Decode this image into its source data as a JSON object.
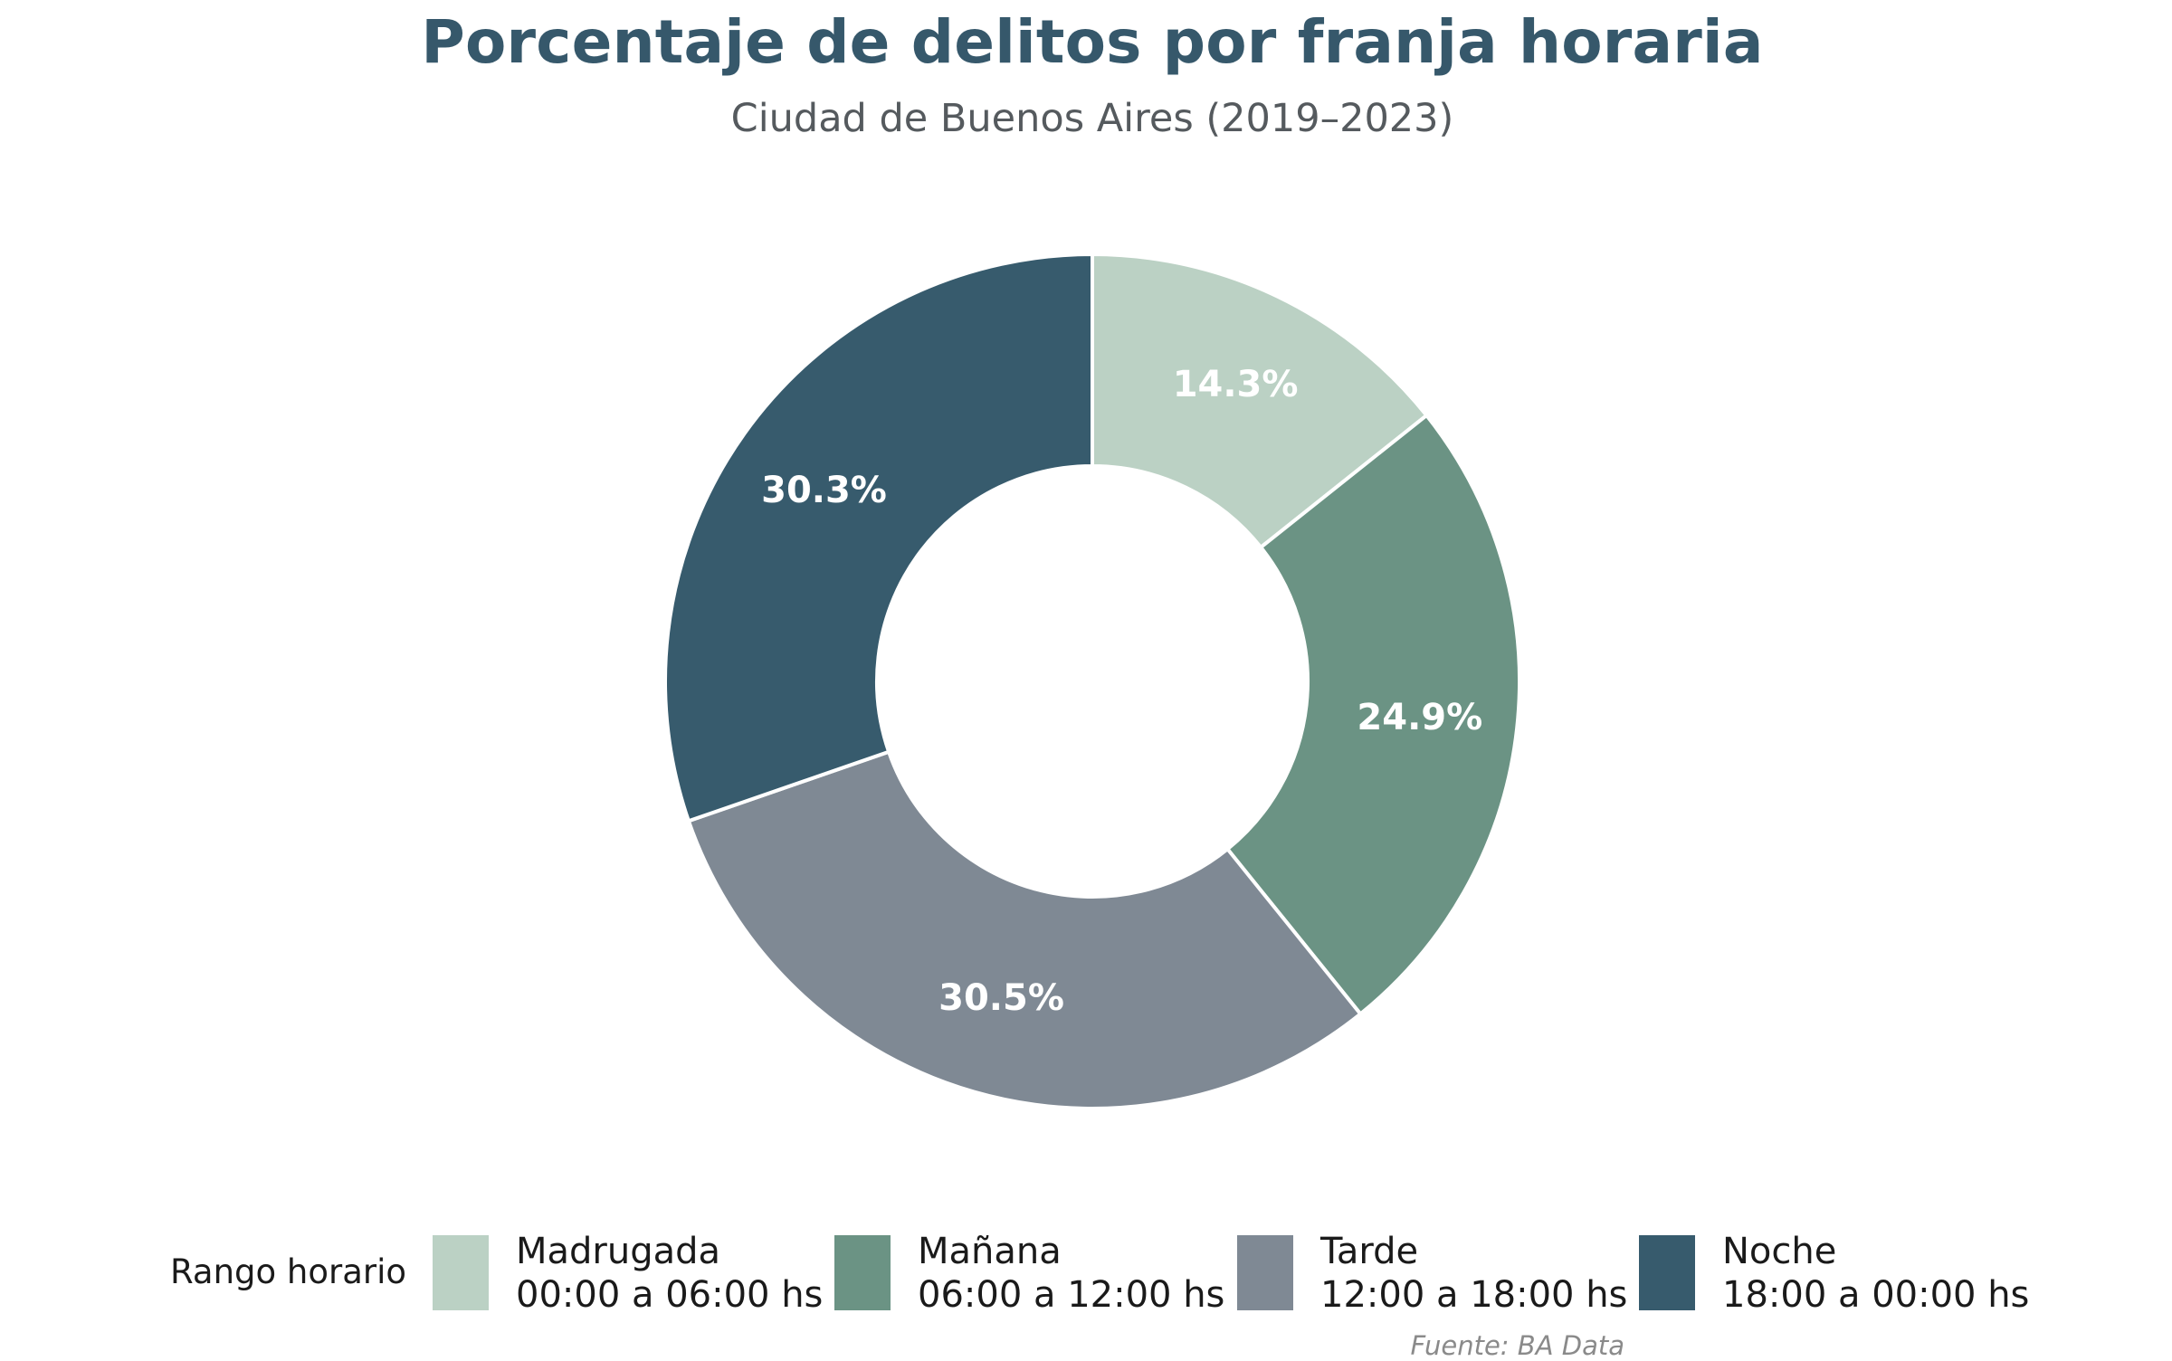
{
  "chart_data": {
    "type": "pie",
    "title": "Porcentaje de delitos por franja horaria",
    "subtitle": "Ciudad de Buenos Aires (2019–2023)",
    "legend_title": "Rango horario",
    "legend_placement": "bottom",
    "source": "Fuente: BA Data",
    "categories": [
      "Madrugada",
      "Mañana",
      "Tarde",
      "Noche"
    ],
    "ranges": [
      "00:00 a 06:00 hs",
      "06:00 a 12:00 hs",
      "12:00 a 18:00 hs",
      "18:00 a 00:00 hs"
    ],
    "values": [
      14.3,
      24.9,
      30.5,
      30.3
    ],
    "labels": [
      "14.3%",
      "24.9%",
      "30.5%",
      "30.3%"
    ],
    "colors": [
      "#bbd1c4",
      "#6b9384",
      "#7f8994",
      "#375b6d"
    ]
  }
}
